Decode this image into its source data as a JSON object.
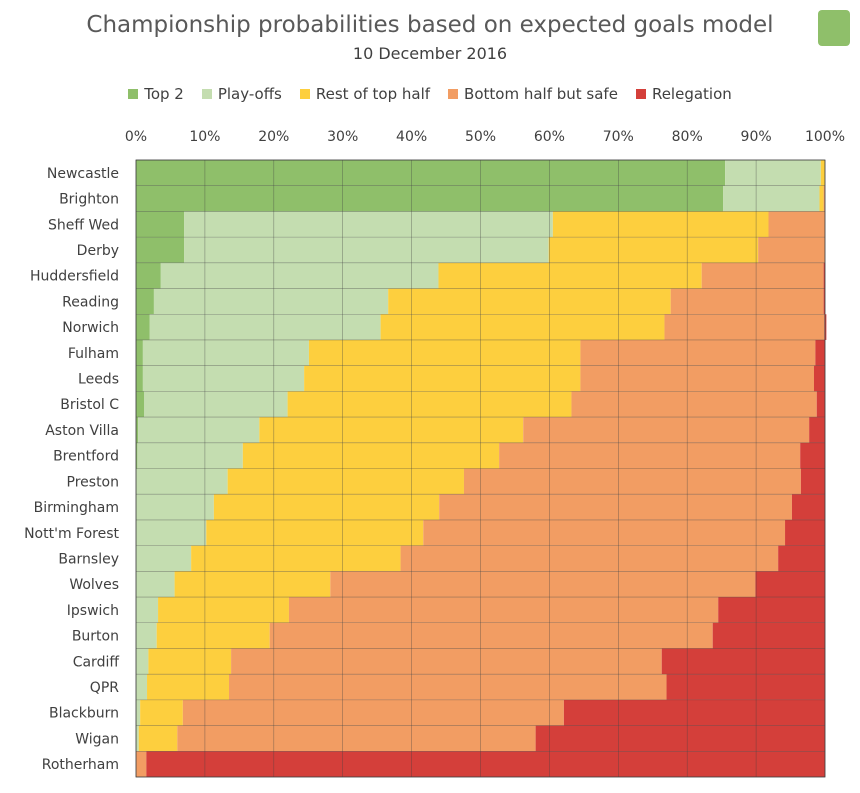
{
  "header": {
    "title": "Championship probabilities based on expected goals model",
    "subtitle": "10 December 2016"
  },
  "legend": [
    {
      "label": "Top 2",
      "color": "#8fbf6a"
    },
    {
      "label": "Play-offs",
      "color": "#c4ddb0"
    },
    {
      "label": "Rest of top half",
      "color": "#fdcf3e"
    },
    {
      "label": "Bottom half but safe",
      "color": "#f29d63"
    },
    {
      "label": "Relegation",
      "color": "#d43f3a"
    }
  ],
  "chart_data": {
    "type": "bar",
    "orientation": "horizontal",
    "stacked": true,
    "title": "Championship probabilities based on expected goals model",
    "subtitle": "10 December 2016",
    "x_axis_position": "top",
    "xlim": [
      0,
      100
    ],
    "x_ticks": [
      "0%",
      "10%",
      "20%",
      "30%",
      "40%",
      "50%",
      "60%",
      "70%",
      "80%",
      "90%",
      "100%"
    ],
    "grid": true,
    "legend_position": "top",
    "categories": [
      "Newcastle",
      "Brighton",
      "Sheff Wed",
      "Derby",
      "Huddersfield",
      "Reading",
      "Norwich",
      "Fulham",
      "Leeds",
      "Bristol C",
      "Aston Villa",
      "Brentford",
      "Preston",
      "Birmingham",
      "Nott'm Forest",
      "Barnsley",
      "Wolves",
      "Ipswich",
      "Burton",
      "Cardiff",
      "QPR",
      "Blackburn",
      "Wigan",
      "Rotherham"
    ],
    "series": [
      {
        "name": "Top 2",
        "color": "#8fbf6a",
        "values": [
          85.5,
          85.2,
          7.0,
          7.0,
          3.6,
          2.6,
          2.0,
          1.0,
          1.0,
          1.2,
          0.3,
          0.2,
          0.1,
          0.1,
          0.1,
          0.0,
          0.0,
          0.0,
          0.0,
          0.0,
          0.0,
          0.0,
          0.0,
          0.0
        ]
      },
      {
        "name": "Play-offs",
        "color": "#c4ddb0",
        "values": [
          13.9,
          14.0,
          53.5,
          52.9,
          40.3,
          34.0,
          33.5,
          24.1,
          23.4,
          20.8,
          17.6,
          15.3,
          13.2,
          11.2,
          10.1,
          8.0,
          5.6,
          3.2,
          3.0,
          1.8,
          1.6,
          0.6,
          0.4,
          0.0
        ]
      },
      {
        "name": "Rest of top half",
        "color": "#fdcf3e",
        "values": [
          0.6,
          0.6,
          31.3,
          30.4,
          38.2,
          41.0,
          41.2,
          39.4,
          40.1,
          41.2,
          38.3,
          37.2,
          34.3,
          32.7,
          31.5,
          30.4,
          22.6,
          19.0,
          16.4,
          12.0,
          11.9,
          6.2,
          5.6,
          0.0
        ]
      },
      {
        "name": "Bottom half but safe",
        "color": "#f29d63",
        "values": [
          0.0,
          0.2,
          8.2,
          9.7,
          17.7,
          22.2,
          23.2,
          34.1,
          33.9,
          35.6,
          41.5,
          43.7,
          48.9,
          51.2,
          52.5,
          54.8,
          61.7,
          62.3,
          64.3,
          62.5,
          63.5,
          55.3,
          52.0,
          1.5
        ]
      },
      {
        "name": "Relegation",
        "color": "#d43f3a",
        "values": [
          0.0,
          0.0,
          0.0,
          0.0,
          0.2,
          0.2,
          0.3,
          1.4,
          1.6,
          1.2,
          2.3,
          3.6,
          3.5,
          4.8,
          5.8,
          6.8,
          10.1,
          15.5,
          16.3,
          23.7,
          23.0,
          37.9,
          42.0,
          98.5
        ]
      }
    ]
  }
}
